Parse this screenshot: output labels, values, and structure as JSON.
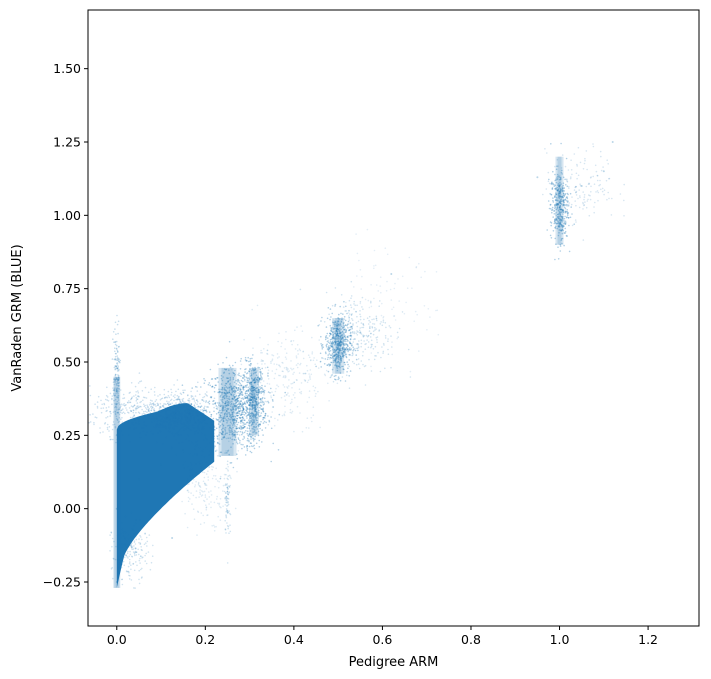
{
  "chart_data": {
    "type": "scatter",
    "title": "",
    "xlabel": "Pedigree ARM",
    "ylabel": "VanRaden GRM (BLUE)",
    "xlim": [
      -0.065,
      1.315
    ],
    "ylim": [
      -0.4,
      1.7
    ],
    "xticks": [
      0.0,
      0.2,
      0.4,
      0.6,
      0.8,
      1.0,
      1.2
    ],
    "xtick_labels": [
      "0.0",
      "0.2",
      "0.4",
      "0.6",
      "0.8",
      "1.0",
      "1.2"
    ],
    "yticks": [
      -0.25,
      0.0,
      0.25,
      0.5,
      0.75,
      1.0,
      1.25,
      1.5
    ],
    "ytick_labels": [
      "−0.25",
      "0.00",
      "0.25",
      "0.50",
      "0.75",
      "1.00",
      "1.25",
      "1.50"
    ],
    "grid": false,
    "legend": "none",
    "marker_color": "#1f77b4",
    "series": [
      {
        "clusters": [
          {
            "x_range": [
              0.0,
              0.22
            ],
            "y_range": [
              -0.27,
              0.36
            ],
            "density": "very high"
          },
          {
            "x_center": 0.25,
            "y_range": [
              0.2,
              0.5
            ],
            "density": "high"
          },
          {
            "x_center": 0.31,
            "y_range": [
              0.25,
              0.5
            ],
            "density": "high"
          },
          {
            "x_center": 0.5,
            "y_range": [
              0.45,
              0.65
            ],
            "density": "moderate"
          },
          {
            "x_center": 1.0,
            "y_range": [
              0.9,
              1.2
            ],
            "density": "moderate"
          }
        ],
        "points": [
          [
            0.0,
            -0.25
          ],
          [
            0.0,
            0.0
          ],
          [
            0.0,
            0.25
          ],
          [
            0.0,
            0.4
          ],
          [
            0.05,
            0.1
          ],
          [
            0.1,
            0.15
          ],
          [
            0.15,
            0.2
          ],
          [
            0.2,
            0.25
          ],
          [
            0.125,
            -0.1
          ],
          [
            0.25,
            0.3
          ],
          [
            0.27,
            0.35
          ],
          [
            0.31,
            0.38
          ],
          [
            0.5,
            0.5
          ],
          [
            0.5,
            0.58
          ],
          [
            0.5,
            0.65
          ],
          [
            0.55,
            0.6
          ],
          [
            1.0,
            0.95
          ],
          [
            1.0,
            1.02
          ],
          [
            1.0,
            1.1
          ],
          [
            1.05,
            1.1
          ],
          [
            1.1,
            1.15
          ],
          [
            1.12,
            1.25
          ],
          [
            0.95,
            1.13
          ],
          [
            0.62,
            0.8
          ]
        ]
      }
    ]
  }
}
